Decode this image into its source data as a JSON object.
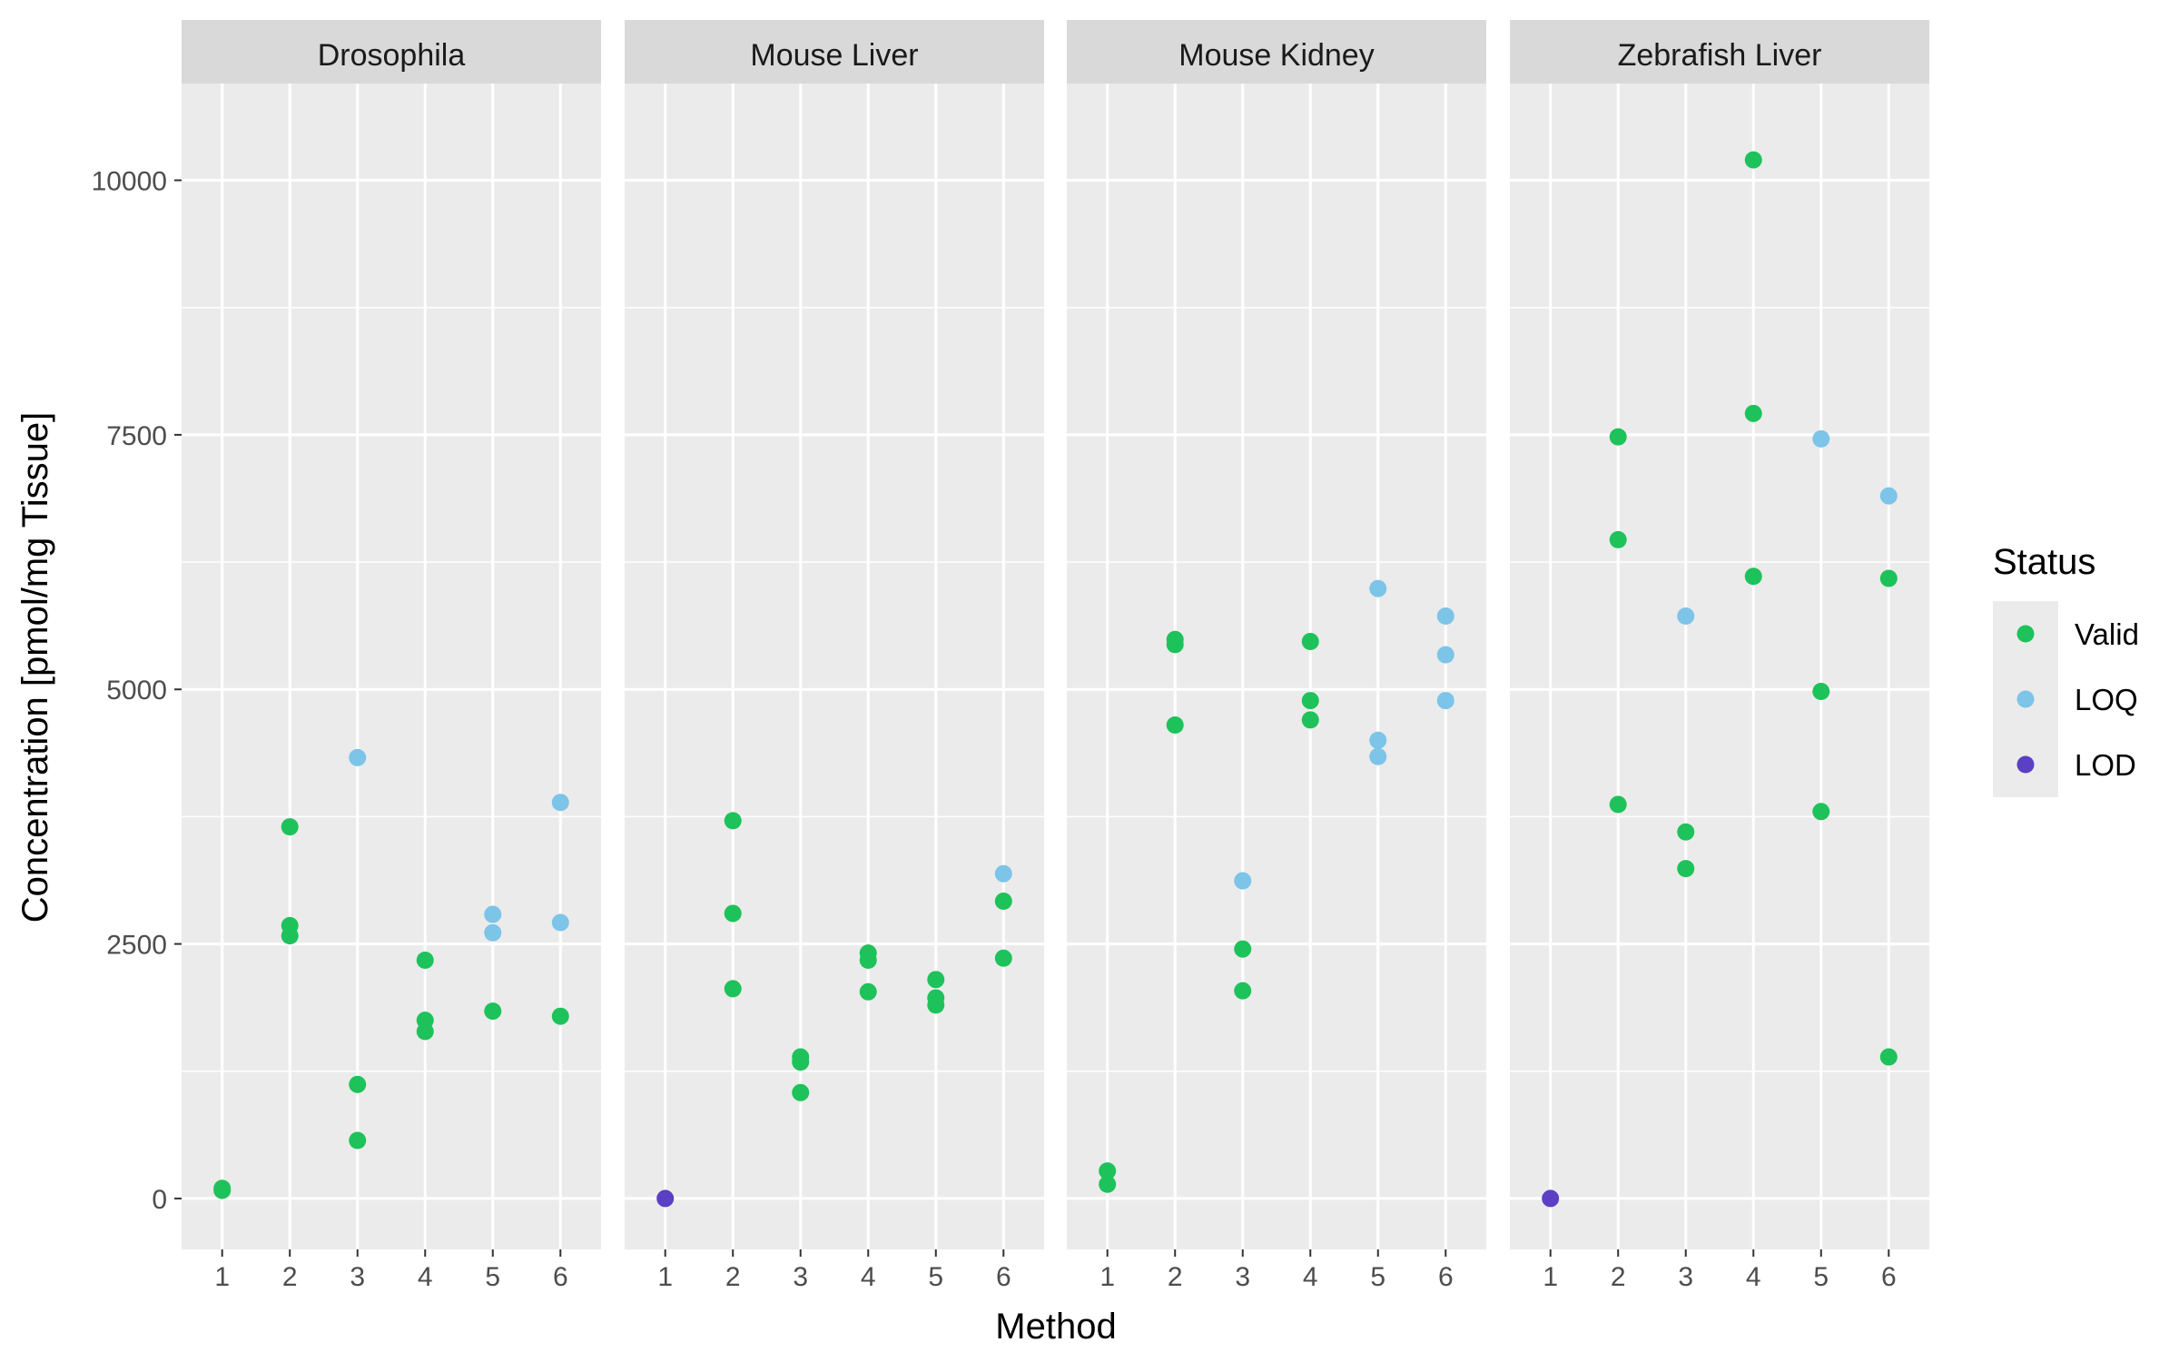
{
  "chart_data": {
    "type": "scatter",
    "xlabel": "Method",
    "ylabel": "Concentration [pmol/mg Tissue]",
    "x_ticks": [
      "1",
      "2",
      "3",
      "4",
      "5",
      "6"
    ],
    "y_ticks": [
      "0",
      "2500",
      "5000",
      "7500",
      "10000"
    ],
    "y_tick_values": [
      0,
      2500,
      5000,
      7500,
      10000
    ],
    "xlim": [
      0.4,
      6.6
    ],
    "ylim": [
      -500,
      10950
    ],
    "grid": true,
    "legend": {
      "title": "Status",
      "placement": "right",
      "entries": [
        {
          "label": "Valid",
          "color": "#1ec25a"
        },
        {
          "label": "LOQ",
          "color": "#7cc4e8"
        },
        {
          "label": "LOD",
          "color": "#5b3fc4"
        }
      ]
    },
    "panels": [
      {
        "name": "Drosophila",
        "points": [
          {
            "x": 1,
            "y": 80,
            "status": "Valid"
          },
          {
            "x": 1,
            "y": 100,
            "status": "Valid"
          },
          {
            "x": 2,
            "y": 3650,
            "status": "Valid"
          },
          {
            "x": 2,
            "y": 2680,
            "status": "Valid"
          },
          {
            "x": 2,
            "y": 2580,
            "status": "Valid"
          },
          {
            "x": 3,
            "y": 4330,
            "status": "LOQ"
          },
          {
            "x": 3,
            "y": 1120,
            "status": "Valid"
          },
          {
            "x": 3,
            "y": 570,
            "status": "Valid"
          },
          {
            "x": 4,
            "y": 2340,
            "status": "Valid"
          },
          {
            "x": 4,
            "y": 1750,
            "status": "Valid"
          },
          {
            "x": 4,
            "y": 1640,
            "status": "Valid"
          },
          {
            "x": 5,
            "y": 2790,
            "status": "LOQ"
          },
          {
            "x": 5,
            "y": 2610,
            "status": "LOQ"
          },
          {
            "x": 5,
            "y": 1840,
            "status": "Valid"
          },
          {
            "x": 6,
            "y": 3890,
            "status": "LOQ"
          },
          {
            "x": 6,
            "y": 2710,
            "status": "LOQ"
          },
          {
            "x": 6,
            "y": 1790,
            "status": "Valid"
          }
        ]
      },
      {
        "name": "Mouse Liver",
        "points": [
          {
            "x": 1,
            "y": 0,
            "status": "LOD"
          },
          {
            "x": 2,
            "y": 3710,
            "status": "Valid"
          },
          {
            "x": 2,
            "y": 2800,
            "status": "Valid"
          },
          {
            "x": 2,
            "y": 2060,
            "status": "Valid"
          },
          {
            "x": 3,
            "y": 1390,
            "status": "Valid"
          },
          {
            "x": 3,
            "y": 1340,
            "status": "Valid"
          },
          {
            "x": 3,
            "y": 1040,
            "status": "Valid"
          },
          {
            "x": 4,
            "y": 2410,
            "status": "Valid"
          },
          {
            "x": 4,
            "y": 2340,
            "status": "Valid"
          },
          {
            "x": 4,
            "y": 2030,
            "status": "Valid"
          },
          {
            "x": 5,
            "y": 2150,
            "status": "Valid"
          },
          {
            "x": 5,
            "y": 1970,
            "status": "Valid"
          },
          {
            "x": 5,
            "y": 1900,
            "status": "Valid"
          },
          {
            "x": 6,
            "y": 3190,
            "status": "LOQ"
          },
          {
            "x": 6,
            "y": 2920,
            "status": "Valid"
          },
          {
            "x": 6,
            "y": 2360,
            "status": "Valid"
          }
        ]
      },
      {
        "name": "Mouse Kidney",
        "points": [
          {
            "x": 1,
            "y": 270,
            "status": "Valid"
          },
          {
            "x": 1,
            "y": 140,
            "status": "Valid"
          },
          {
            "x": 2,
            "y": 5490,
            "status": "Valid"
          },
          {
            "x": 2,
            "y": 5440,
            "status": "Valid"
          },
          {
            "x": 2,
            "y": 4650,
            "status": "Valid"
          },
          {
            "x": 3,
            "y": 3120,
            "status": "LOQ"
          },
          {
            "x": 3,
            "y": 2450,
            "status": "Valid"
          },
          {
            "x": 3,
            "y": 2040,
            "status": "Valid"
          },
          {
            "x": 4,
            "y": 5470,
            "status": "Valid"
          },
          {
            "x": 4,
            "y": 4890,
            "status": "Valid"
          },
          {
            "x": 4,
            "y": 4700,
            "status": "Valid"
          },
          {
            "x": 5,
            "y": 5990,
            "status": "LOQ"
          },
          {
            "x": 5,
            "y": 4500,
            "status": "LOQ"
          },
          {
            "x": 5,
            "y": 4340,
            "status": "LOQ"
          },
          {
            "x": 6,
            "y": 5720,
            "status": "LOQ"
          },
          {
            "x": 6,
            "y": 5340,
            "status": "LOQ"
          },
          {
            "x": 6,
            "y": 4890,
            "status": "LOQ"
          }
        ]
      },
      {
        "name": "Zebrafish Liver",
        "points": [
          {
            "x": 1,
            "y": 0,
            "status": "LOD"
          },
          {
            "x": 2,
            "y": 7480,
            "status": "Valid"
          },
          {
            "x": 2,
            "y": 6470,
            "status": "Valid"
          },
          {
            "x": 2,
            "y": 3870,
            "status": "Valid"
          },
          {
            "x": 3,
            "y": 5720,
            "status": "LOQ"
          },
          {
            "x": 3,
            "y": 3600,
            "status": "Valid"
          },
          {
            "x": 3,
            "y": 3240,
            "status": "Valid"
          },
          {
            "x": 4,
            "y": 10200,
            "status": "Valid"
          },
          {
            "x": 4,
            "y": 7710,
            "status": "Valid"
          },
          {
            "x": 4,
            "y": 6110,
            "status": "Valid"
          },
          {
            "x": 5,
            "y": 7460,
            "status": "LOQ"
          },
          {
            "x": 5,
            "y": 4980,
            "status": "Valid"
          },
          {
            "x": 5,
            "y": 3800,
            "status": "Valid"
          },
          {
            "x": 6,
            "y": 6900,
            "status": "LOQ"
          },
          {
            "x": 6,
            "y": 6090,
            "status": "Valid"
          },
          {
            "x": 6,
            "y": 1390,
            "status": "Valid"
          }
        ]
      }
    ]
  }
}
